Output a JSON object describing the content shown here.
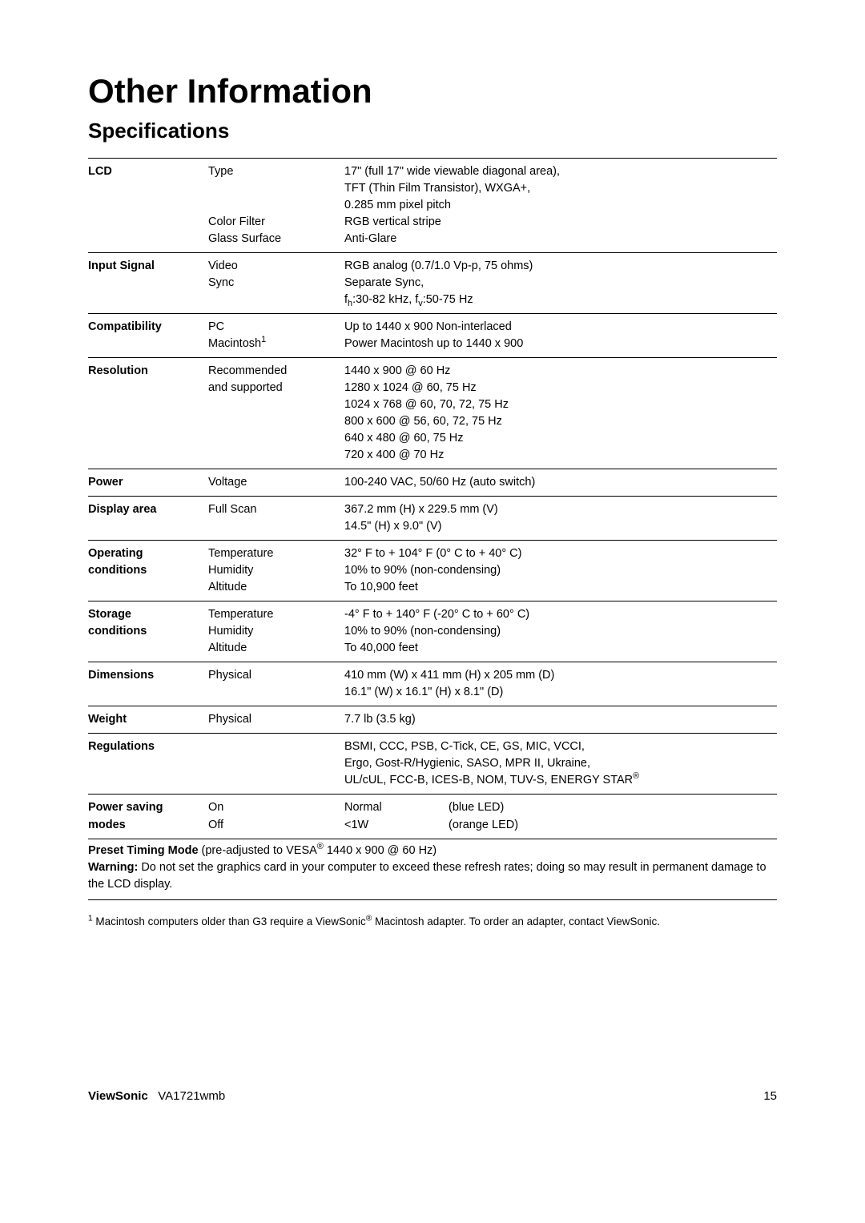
{
  "title": "Other Information",
  "subtitle": "Specifications",
  "rows": {
    "lcd": {
      "label": "LCD",
      "type_label": "Type",
      "type_val_l1": "17\" (full 17\" wide viewable diagonal area),",
      "type_val_l2": "TFT (Thin Film Transistor), WXGA+,",
      "type_val_l3": "0.285 mm pixel pitch",
      "colorfilter_label": "Color Filter",
      "colorfilter_val": "RGB vertical stripe",
      "glass_label": "Glass Surface",
      "glass_val": "Anti-Glare"
    },
    "input": {
      "label": "Input Signal",
      "video_label": "Video",
      "video_val": "RGB analog (0.7/1.0 Vp-p, 75 ohms)",
      "sync_label": "Sync",
      "sync_val_l1": "Separate Sync,",
      "sync_val_l2a": "f",
      "sync_val_l2b": ":30-82 kHz, f",
      "sync_val_l2c": ":50-75 Hz",
      "sub_h": "h",
      "sub_v": "v"
    },
    "compat": {
      "label": "Compatibility",
      "pc_label": "PC",
      "pc_val": "Up to 1440 x 900 Non-interlaced",
      "mac_label_a": "Macintosh",
      "mac_sup": "1",
      "mac_val": "Power Macintosh up to 1440 x 900"
    },
    "resolution": {
      "label": "Resolution",
      "rec_label_l1": "Recommended",
      "rec_label_l2": "and supported",
      "v1": "1440 x 900 @ 60 Hz",
      "v2": "1280 x 1024 @ 60, 75 Hz",
      "v3": "1024 x 768 @ 60, 70, 72, 75 Hz",
      "v4": "800 x 600 @ 56, 60, 72, 75 Hz",
      "v5": "640 x 480 @ 60, 75 Hz",
      "v6": "720 x 400 @ 70 Hz"
    },
    "power": {
      "label": "Power",
      "voltage_label": "Voltage",
      "voltage_val": "100-240 VAC, 50/60 Hz (auto switch)"
    },
    "display": {
      "label": "Display area",
      "full_label": "Full Scan",
      "v1": "367.2 mm (H) x 229.5 mm (V)",
      "v2": "14.5\" (H) x 9.0\" (V)"
    },
    "opcond": {
      "label_l1": "Operating",
      "label_l2": "conditions",
      "temp_label": "Temperature",
      "temp_val": "32° F to + 104° F (0° C to + 40° C)",
      "hum_label": "Humidity",
      "hum_val": "10% to 90% (non-condensing)",
      "alt_label": "Altitude",
      "alt_val": "To 10,900 feet"
    },
    "storcond": {
      "label_l1": "Storage",
      "label_l2": "conditions",
      "temp_label": "Temperature",
      "temp_val": "-4° F to + 140° F (-20° C to + 60° C)",
      "hum_label": "Humidity",
      "hum_val": "10% to 90% (non-condensing)",
      "alt_label": "Altitude",
      "alt_val": "To 40,000 feet"
    },
    "dim": {
      "label": "Dimensions",
      "phys_label": "Physical",
      "v1": "410 mm (W) x 411 mm (H) x 205 mm (D)",
      "v2": "16.1\" (W) x 16.1\" (H) x 8.1\" (D)"
    },
    "weight": {
      "label": "Weight",
      "phys_label": "Physical",
      "val": "7.7 lb (3.5 kg)"
    },
    "reg": {
      "label": "Regulations",
      "v1": "BSMI, CCC, PSB, C-Tick, CE, GS, MIC, VCCI,",
      "v2": "Ergo, Gost-R/Hygienic, SASO, MPR II, Ukraine,",
      "v3a": "UL/cUL, FCC-B, ICES-B, NOM, TUV-S, ENERGY STAR",
      "reg_sup": "®"
    },
    "psave": {
      "label_l1": "Power saving",
      "label_l2": "modes",
      "on_label": "On",
      "on_v1": "Normal",
      "on_v2": "(blue LED)",
      "off_label": "Off",
      "off_v1": "<1W",
      "off_v2": "(orange LED)"
    }
  },
  "footerbox": {
    "preset_b": "Preset Timing Mode",
    "preset_rest_a": " (pre-adjusted to VESA",
    "preset_sup": "®",
    "preset_rest_b": " 1440 x 900 @ 60 Hz)",
    "warn_b": "Warning:",
    "warn_rest": " Do not set the graphics card in your computer to exceed these refresh rates; doing so may result in permanent damage to the LCD display."
  },
  "footnote": {
    "sup": "1",
    "text_a": " Macintosh computers older than G3 require a ViewSonic",
    "reg": "®",
    "text_b": " Macintosh adapter. To order an adapter, contact ViewSonic."
  },
  "pagefoot": {
    "brand": "ViewSonic",
    "model": "VA1721wmb",
    "pagenum": "15"
  }
}
